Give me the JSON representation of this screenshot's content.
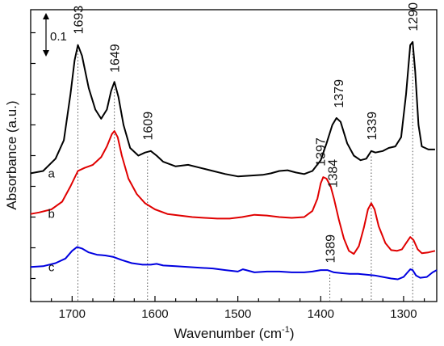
{
  "chart_data": {
    "type": "line",
    "xlabel": "Wavenumber (cm",
    "xlabel_sup": "-1",
    "xlabel_close": ")",
    "ylabel": "Absorbance (a.u.)",
    "xlim": [
      1750,
      1260
    ],
    "x_reversed": true,
    "xticks": [
      1700,
      1600,
      1500,
      1400,
      1300
    ],
    "scale_bar_label": "0.1",
    "grid": false,
    "series": [
      {
        "name": "a",
        "color": "#000000",
        "points": [
          [
            1750,
            1.385
          ],
          [
            1735,
            1.4
          ],
          [
            1720,
            1.48
          ],
          [
            1710,
            1.6
          ],
          [
            1702,
            1.9
          ],
          [
            1697,
            2.12
          ],
          [
            1693,
            2.22
          ],
          [
            1688,
            2.15
          ],
          [
            1680,
            1.94
          ],
          [
            1672,
            1.8
          ],
          [
            1665,
            1.74
          ],
          [
            1658,
            1.8
          ],
          [
            1653,
            1.92
          ],
          [
            1649,
            1.98
          ],
          [
            1644,
            1.88
          ],
          [
            1638,
            1.7
          ],
          [
            1630,
            1.55
          ],
          [
            1620,
            1.5
          ],
          [
            1612,
            1.52
          ],
          [
            1605,
            1.53
          ],
          [
            1598,
            1.5
          ],
          [
            1590,
            1.46
          ],
          [
            1575,
            1.43
          ],
          [
            1560,
            1.44
          ],
          [
            1545,
            1.42
          ],
          [
            1530,
            1.4
          ],
          [
            1515,
            1.38
          ],
          [
            1500,
            1.365
          ],
          [
            1485,
            1.37
          ],
          [
            1470,
            1.375
          ],
          [
            1460,
            1.385
          ],
          [
            1450,
            1.4
          ],
          [
            1440,
            1.405
          ],
          [
            1430,
            1.39
          ],
          [
            1420,
            1.38
          ],
          [
            1410,
            1.4
          ],
          [
            1400,
            1.47
          ],
          [
            1393,
            1.58
          ],
          [
            1386,
            1.7
          ],
          [
            1381,
            1.745
          ],
          [
            1376,
            1.72
          ],
          [
            1368,
            1.58
          ],
          [
            1360,
            1.5
          ],
          [
            1352,
            1.47
          ],
          [
            1345,
            1.48
          ],
          [
            1339,
            1.53
          ],
          [
            1334,
            1.52
          ],
          [
            1325,
            1.53
          ],
          [
            1318,
            1.55
          ],
          [
            1310,
            1.56
          ],
          [
            1303,
            1.62
          ],
          [
            1297,
            1.9
          ],
          [
            1292,
            2.22
          ],
          [
            1289,
            2.24
          ],
          [
            1286,
            2.05
          ],
          [
            1282,
            1.7
          ],
          [
            1278,
            1.56
          ],
          [
            1270,
            1.54
          ],
          [
            1262,
            1.54
          ]
        ]
      },
      {
        "name": "b",
        "color": "#e00000",
        "points": [
          [
            1750,
            1.12
          ],
          [
            1740,
            1.13
          ],
          [
            1725,
            1.15
          ],
          [
            1712,
            1.2
          ],
          [
            1702,
            1.3
          ],
          [
            1693,
            1.4
          ],
          [
            1685,
            1.42
          ],
          [
            1675,
            1.44
          ],
          [
            1665,
            1.49
          ],
          [
            1658,
            1.56
          ],
          [
            1652,
            1.64
          ],
          [
            1649,
            1.66
          ],
          [
            1645,
            1.62
          ],
          [
            1640,
            1.5
          ],
          [
            1632,
            1.35
          ],
          [
            1622,
            1.25
          ],
          [
            1612,
            1.19
          ],
          [
            1600,
            1.15
          ],
          [
            1585,
            1.12
          ],
          [
            1570,
            1.11
          ],
          [
            1555,
            1.1
          ],
          [
            1540,
            1.095
          ],
          [
            1525,
            1.09
          ],
          [
            1510,
            1.09
          ],
          [
            1495,
            1.1
          ],
          [
            1480,
            1.115
          ],
          [
            1465,
            1.11
          ],
          [
            1450,
            1.1
          ],
          [
            1435,
            1.095
          ],
          [
            1420,
            1.1
          ],
          [
            1410,
            1.14
          ],
          [
            1404,
            1.22
          ],
          [
            1400,
            1.32
          ],
          [
            1397,
            1.36
          ],
          [
            1393,
            1.35
          ],
          [
            1388,
            1.3
          ],
          [
            1384,
            1.22
          ],
          [
            1378,
            1.08
          ],
          [
            1372,
            0.96
          ],
          [
            1366,
            0.88
          ],
          [
            1360,
            0.86
          ],
          [
            1354,
            0.91
          ],
          [
            1348,
            1.03
          ],
          [
            1343,
            1.15
          ],
          [
            1339,
            1.19
          ],
          [
            1335,
            1.15
          ],
          [
            1330,
            1.04
          ],
          [
            1322,
            0.93
          ],
          [
            1315,
            0.885
          ],
          [
            1308,
            0.88
          ],
          [
            1302,
            0.89
          ],
          [
            1297,
            0.93
          ],
          [
            1292,
            0.97
          ],
          [
            1288,
            0.95
          ],
          [
            1283,
            0.89
          ],
          [
            1278,
            0.865
          ],
          [
            1270,
            0.87
          ],
          [
            1262,
            0.88
          ]
        ]
      },
      {
        "name": "c",
        "color": "#0000e0",
        "points": [
          [
            1750,
            0.775
          ],
          [
            1735,
            0.78
          ],
          [
            1720,
            0.8
          ],
          [
            1708,
            0.83
          ],
          [
            1700,
            0.88
          ],
          [
            1694,
            0.905
          ],
          [
            1688,
            0.895
          ],
          [
            1680,
            0.87
          ],
          [
            1670,
            0.855
          ],
          [
            1660,
            0.85
          ],
          [
            1650,
            0.84
          ],
          [
            1640,
            0.82
          ],
          [
            1628,
            0.8
          ],
          [
            1615,
            0.79
          ],
          [
            1605,
            0.79
          ],
          [
            1598,
            0.795
          ],
          [
            1590,
            0.785
          ],
          [
            1575,
            0.78
          ],
          [
            1560,
            0.775
          ],
          [
            1545,
            0.77
          ],
          [
            1530,
            0.765
          ],
          [
            1515,
            0.755
          ],
          [
            1500,
            0.745
          ],
          [
            1494,
            0.76
          ],
          [
            1490,
            0.755
          ],
          [
            1480,
            0.74
          ],
          [
            1465,
            0.745
          ],
          [
            1450,
            0.745
          ],
          [
            1435,
            0.74
          ],
          [
            1420,
            0.74
          ],
          [
            1410,
            0.745
          ],
          [
            1400,
            0.755
          ],
          [
            1392,
            0.755
          ],
          [
            1384,
            0.74
          ],
          [
            1375,
            0.735
          ],
          [
            1365,
            0.73
          ],
          [
            1355,
            0.73
          ],
          [
            1345,
            0.725
          ],
          [
            1335,
            0.72
          ],
          [
            1325,
            0.71
          ],
          [
            1315,
            0.7
          ],
          [
            1307,
            0.695
          ],
          [
            1300,
            0.71
          ],
          [
            1296,
            0.735
          ],
          [
            1292,
            0.76
          ],
          [
            1289,
            0.755
          ],
          [
            1285,
            0.72
          ],
          [
            1280,
            0.705
          ],
          [
            1272,
            0.71
          ],
          [
            1265,
            0.74
          ],
          [
            1260,
            0.755
          ]
        ]
      }
    ],
    "peak_labels": [
      {
        "text": "1693",
        "x": 1693,
        "y": 2.29,
        "line_to": 0.55
      },
      {
        "text": "1649",
        "x": 1649,
        "y": 2.04,
        "line_to": 0.55
      },
      {
        "text": "1609",
        "x": 1609,
        "y": 1.6,
        "line_to": 0.55
      },
      {
        "text": "1397",
        "x": 1401,
        "y": 1.43,
        "line_to": null
      },
      {
        "text": "1384",
        "x": 1386,
        "y": 1.29,
        "line_to": null
      },
      {
        "text": "1379",
        "x": 1379,
        "y": 1.81,
        "line_to": null
      },
      {
        "text": "1389",
        "x": 1389,
        "y": 0.8,
        "line_to": 0.55
      },
      {
        "text": "1339",
        "x": 1339,
        "y": 1.6,
        "line_to": 0.55
      },
      {
        "text": "1290",
        "x": 1289,
        "y": 2.31,
        "line_to": 0.55
      }
    ]
  }
}
